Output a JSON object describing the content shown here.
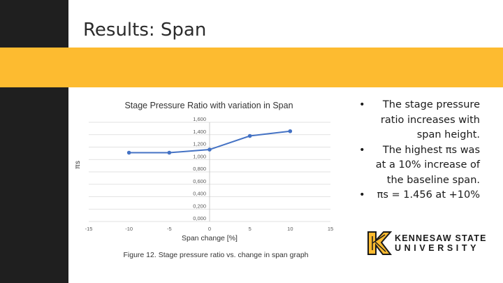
{
  "slide": {
    "title": "Results: Span",
    "caption": "Figure 12. Stage pressure ratio vs. change in span graph"
  },
  "bullets": [
    "The stage pressure ratio increases with span height.",
    "The highest πs was at a 10% increase of the baseline span.",
    "πs = 1.456 at +10%"
  ],
  "logo": {
    "line1": "KENNESAW STATE",
    "line2": "UNIVERSITY"
  },
  "colors": {
    "gold": "#fdbb30",
    "dark": "#1f1f1f",
    "series": "#4472c4"
  },
  "chart_data": {
    "type": "scatter",
    "title": "Stage Pressure Ratio with variation in Span",
    "xlabel": "Span change [%]",
    "ylabel": "πs",
    "xlim": [
      -15,
      15
    ],
    "ylim": [
      0,
      1.6
    ],
    "x_ticks": [
      "-15",
      "-10",
      "-5",
      "0",
      "5",
      "10",
      "15"
    ],
    "y_ticks": [
      "0,000",
      "0,200",
      "0,400",
      "0,600",
      "0,800",
      "1,000",
      "1,200",
      "1,400",
      "1,600"
    ],
    "grid": true,
    "series": [
      {
        "x": [
          -10,
          -5,
          0,
          5,
          10
        ],
        "y": [
          1.11,
          1.11,
          1.16,
          1.38,
          1.456
        ]
      }
    ]
  }
}
